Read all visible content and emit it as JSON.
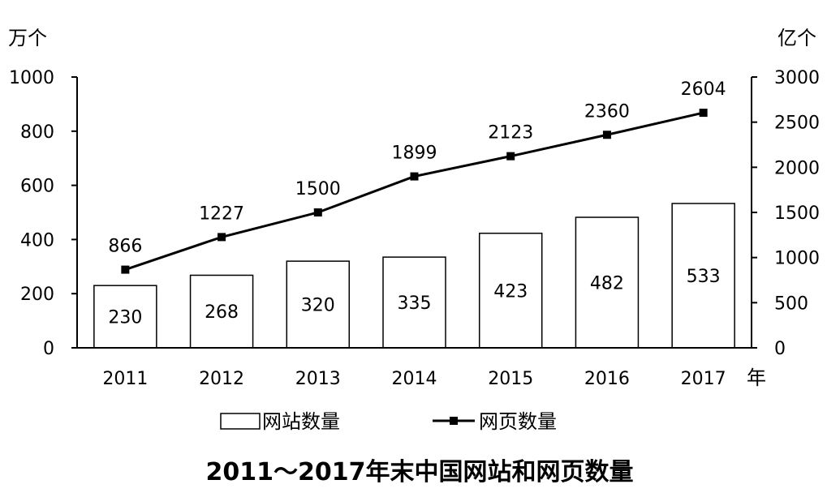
{
  "chart_data": {
    "type": "bar+line",
    "title": "2011～2017年末中国网站和网页数量",
    "categories": [
      "2011",
      "2012",
      "2013",
      "2014",
      "2015",
      "2016",
      "2017"
    ],
    "xunit": "年",
    "left_axis": {
      "unit": "万个",
      "ticks": [
        "0",
        "200",
        "400",
        "600",
        "800",
        "1000"
      ],
      "ylim": [
        0,
        1000
      ]
    },
    "right_axis": {
      "unit": "亿个",
      "ticks": [
        "0",
        "500",
        "1000",
        "1500",
        "2000",
        "2500",
        "3000"
      ],
      "ylim": [
        0,
        3000
      ]
    },
    "series": [
      {
        "name": "网站数量",
        "type": "bar",
        "axis": "left",
        "values": [
          230,
          268,
          320,
          335,
          423,
          482,
          533
        ]
      },
      {
        "name": "网页数量",
        "type": "line",
        "axis": "right",
        "values": [
          866,
          1227,
          1500,
          1899,
          2123,
          2360,
          2604
        ]
      }
    ],
    "grid": false,
    "legend": "bottom"
  }
}
